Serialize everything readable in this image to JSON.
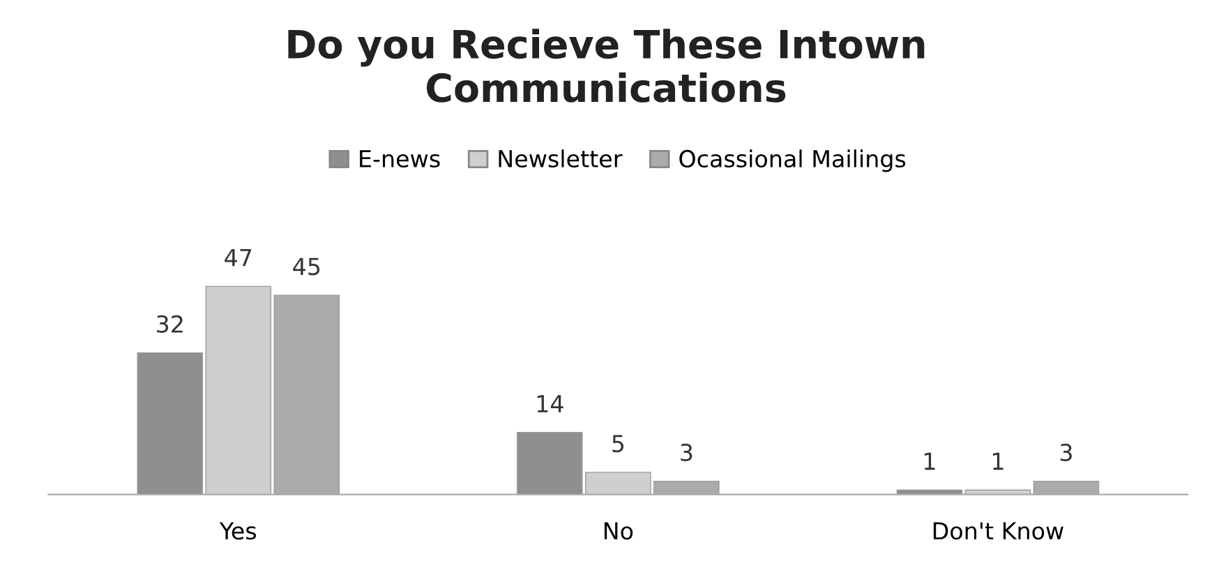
{
  "chart_data": {
    "type": "bar",
    "title": "Do you Recieve These Intown\nCommunications",
    "categories": [
      "Yes",
      "No",
      "Don't Know"
    ],
    "series": [
      {
        "name": "E-news",
        "color": "#8f8f8f",
        "values": [
          32,
          14,
          1
        ]
      },
      {
        "name": "Newsletter",
        "color": "#cfcfcf",
        "values": [
          47,
          5,
          1
        ]
      },
      {
        "name": "Ocassional Mailings",
        "color": "#ababab",
        "values": [
          45,
          3,
          3
        ]
      }
    ],
    "data_labels": true,
    "legend": "top",
    "grid": false
  }
}
